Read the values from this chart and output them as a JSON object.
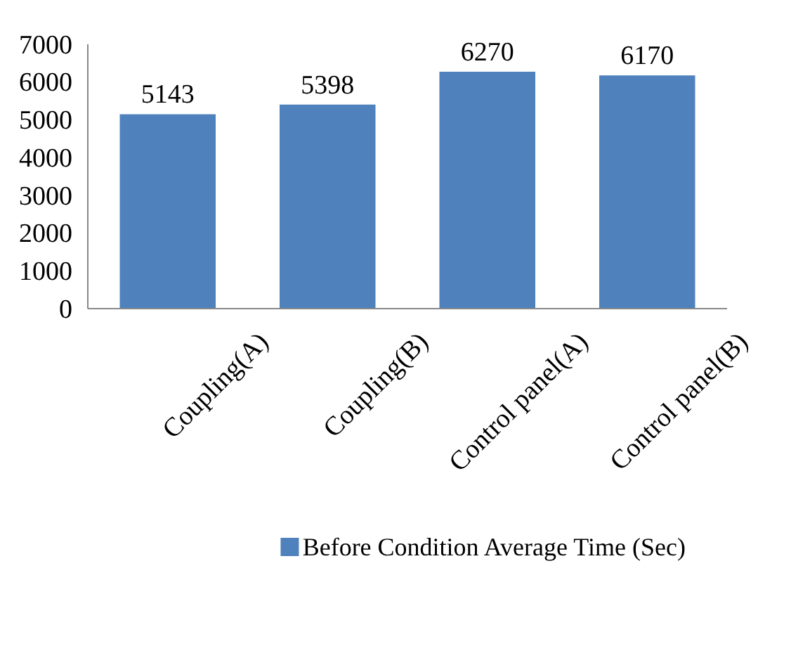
{
  "chart_data": {
    "type": "bar",
    "categories": [
      "Coupling(A)",
      "Coupling(B)",
      "Control panel(A)",
      "Control panel(B)"
    ],
    "series": [
      {
        "name": "Before Condition Average Time (Sec)",
        "color": "#4f81bd",
        "values": [
          5143,
          5398,
          6270,
          6170
        ]
      }
    ],
    "ylim": [
      0,
      7000
    ],
    "yticks": [
      0,
      1000,
      2000,
      3000,
      4000,
      5000,
      6000,
      7000
    ],
    "data_labels": true,
    "grid": false,
    "legend": "bottom"
  }
}
